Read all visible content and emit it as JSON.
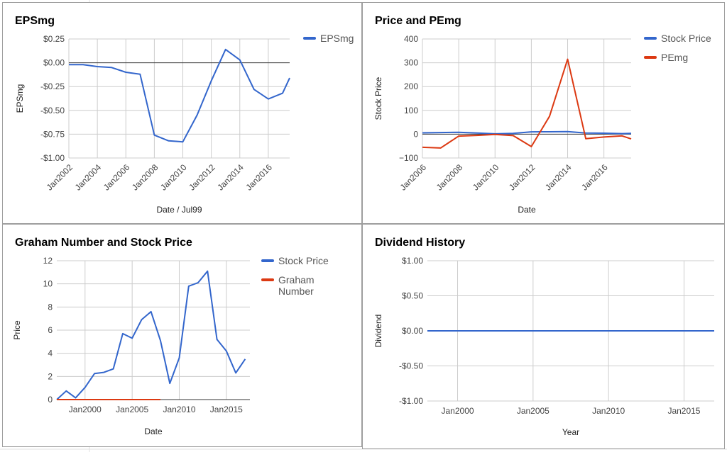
{
  "chart_data": [
    {
      "type": "line",
      "title": "EPSmg",
      "xlabel": "Date / Jul99",
      "ylabel": "EPSmg",
      "xlim": [
        2002,
        2017.5
      ],
      "ylim": [
        -1.0,
        0.25
      ],
      "y_ticks": [
        0.25,
        0.0,
        -0.25,
        -0.5,
        -0.75,
        -1.0
      ],
      "y_tick_labels": [
        "$0.25",
        "$0.00",
        "-$0.25",
        "-$0.50",
        "-$0.75",
        "-$1.00"
      ],
      "x_ticks": [
        2002,
        2004,
        2006,
        2008,
        2010,
        2012,
        2014,
        2016
      ],
      "x_tick_labels": [
        "Jan2002",
        "Jan2004",
        "Jan2006",
        "Jan2008",
        "Jan2010",
        "Jan2012",
        "Jan2014",
        "Jan2016"
      ],
      "legend_position": "top-right",
      "series": [
        {
          "name": "EPSmg",
          "color": "#3366cc",
          "x": [
            2002,
            2003,
            2004,
            2005,
            2006,
            2007,
            2008,
            2009,
            2010,
            2011,
            2012,
            2013,
            2014,
            2015,
            2016,
            2017,
            2017.5
          ],
          "y": [
            -0.02,
            -0.02,
            -0.04,
            -0.05,
            -0.1,
            -0.12,
            -0.76,
            -0.82,
            -0.83,
            -0.55,
            -0.19,
            0.14,
            0.03,
            -0.28,
            -0.38,
            -0.32,
            -0.16
          ]
        }
      ]
    },
    {
      "type": "line",
      "title": "Price and PEmg",
      "xlabel": "Date",
      "ylabel": "Stock Price",
      "xlim": [
        2006,
        2017.5
      ],
      "ylim": [
        -100,
        400
      ],
      "y_ticks": [
        400,
        300,
        200,
        100,
        0,
        -100
      ],
      "y_tick_labels": [
        "400",
        "300",
        "200",
        "100",
        "0",
        "−100"
      ],
      "x_ticks": [
        2006,
        2008,
        2010,
        2012,
        2014,
        2016
      ],
      "x_tick_labels": [
        "Jan2006",
        "Jan2008",
        "Jan2010",
        "Jan2012",
        "Jan2014",
        "Jan2016"
      ],
      "legend_position": "top-right",
      "series": [
        {
          "name": "Stock Price",
          "color": "#3366cc",
          "x": [
            2006,
            2007,
            2008,
            2009,
            2010,
            2011,
            2012,
            2013,
            2014,
            2015,
            2016,
            2017,
            2017.5
          ],
          "y": [
            5.7,
            6.9,
            7.6,
            5.1,
            1.4,
            3.6,
            9.8,
            10.1,
            11.1,
            5.2,
            4.2,
            2.3,
            3.5
          ]
        },
        {
          "name": "PEmg",
          "color": "#dc3912",
          "x": [
            2006,
            2007,
            2008,
            2009,
            2010,
            2011,
            2012,
            2013,
            2014,
            2015,
            2016,
            2017,
            2017.5
          ],
          "y": [
            -55,
            -58,
            -8,
            -5,
            -1,
            -6,
            -52,
            75,
            315,
            -19,
            -12,
            -7,
            -20
          ]
        }
      ]
    },
    {
      "type": "line",
      "title": "Graham Number and Stock Price",
      "xlabel": "Date",
      "ylabel": "Price",
      "xlim": [
        1997,
        2017.5
      ],
      "ylim": [
        0,
        12
      ],
      "y_ticks": [
        0,
        2,
        4,
        6,
        8,
        10,
        12
      ],
      "y_tick_labels": [
        "0",
        "2",
        "4",
        "6",
        "8",
        "10",
        "12"
      ],
      "x_ticks": [
        2000,
        2005,
        2010,
        2015
      ],
      "x_tick_labels": [
        "Jan2000",
        "Jan2005",
        "Jan2010",
        "Jan2015"
      ],
      "legend_position": "top-right",
      "series": [
        {
          "name": "Stock Price",
          "color": "#3366cc",
          "x": [
            1997,
            1998,
            1999,
            2000,
            2001,
            2002,
            2003,
            2004,
            2005,
            2006,
            2007,
            2008,
            2009,
            2010,
            2011,
            2012,
            2013,
            2014,
            2015,
            2016,
            2017
          ],
          "y": [
            0,
            0.75,
            0.15,
            1.05,
            2.25,
            2.35,
            2.65,
            5.7,
            5.3,
            6.9,
            7.6,
            5.1,
            1.4,
            3.6,
            9.8,
            10.1,
            11.1,
            5.2,
            4.2,
            2.3,
            3.5
          ]
        },
        {
          "name": "Graham Number",
          "color": "#dc3912",
          "x": [
            1997,
            2008
          ],
          "y": [
            0,
            0
          ]
        }
      ]
    },
    {
      "type": "line",
      "title": "Dividend History",
      "xlabel": "Year",
      "ylabel": "Dividend",
      "xlim": [
        1998,
        2017
      ],
      "ylim": [
        -1.0,
        1.0
      ],
      "y_ticks": [
        1.0,
        0.5,
        0.0,
        -0.5,
        -1.0
      ],
      "y_tick_labels": [
        "$1.00",
        "$0.50",
        "$0.00",
        "-$0.50",
        "-$1.00"
      ],
      "x_ticks": [
        2000,
        2005,
        2010,
        2015
      ],
      "x_tick_labels": [
        "Jan2000",
        "Jan2005",
        "Jan2010",
        "Jan2015"
      ],
      "series": [
        {
          "color": "#3366cc",
          "x": [
            1998,
            2017
          ],
          "y": [
            0,
            0
          ]
        }
      ]
    }
  ]
}
